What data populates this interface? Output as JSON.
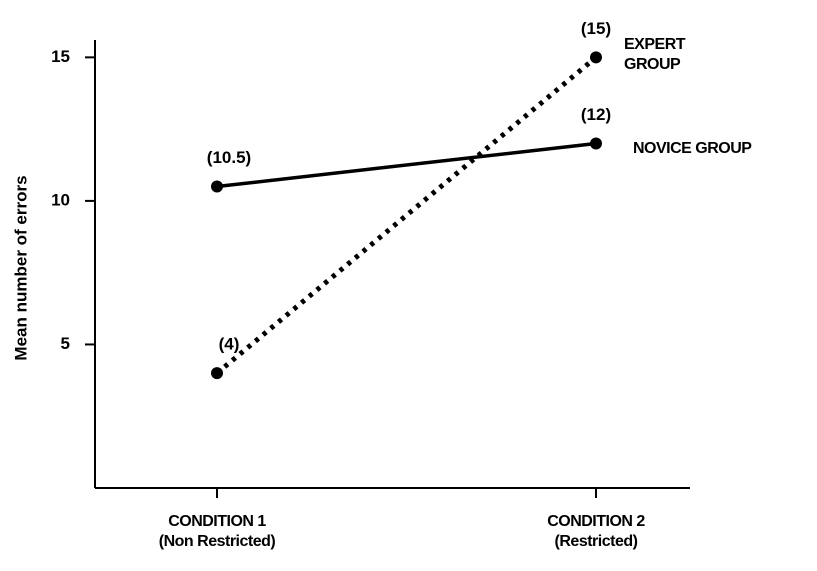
{
  "chart_data": {
    "type": "line",
    "y_label": "Mean number of errors",
    "categories": [
      "CONDITION 1\n(Non Restricted)",
      "CONDITION 2\n(Restricted)"
    ],
    "series": [
      {
        "name": "EXPERT GROUP",
        "color": "#000000",
        "style": "dotted",
        "values": [
          4,
          15
        ],
        "value_labels": [
          "(4)",
          "(15)"
        ]
      },
      {
        "name": "NOVICE GROUP",
        "color": "#000000",
        "style": "solid",
        "values": [
          10.5,
          12
        ],
        "value_labels": [
          "(10.5)",
          "(12)"
        ]
      }
    ],
    "ylim": [
      0,
      15.5
    ],
    "yticks": [
      5,
      10,
      15
    ]
  }
}
